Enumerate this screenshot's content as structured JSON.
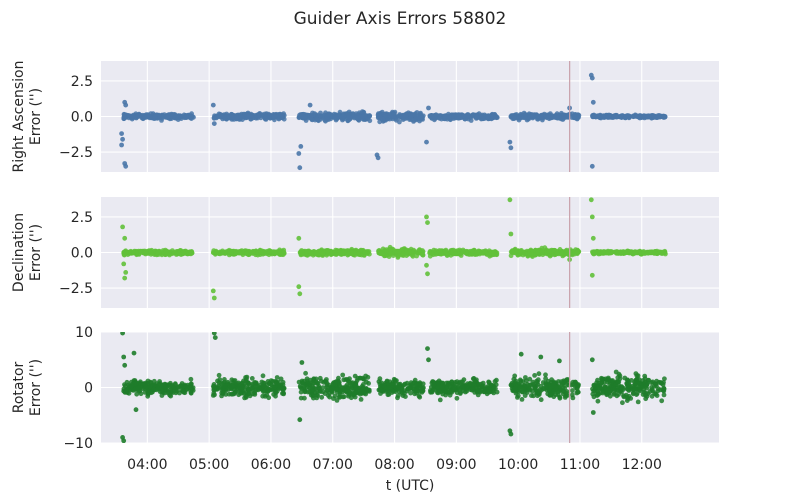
{
  "chart_data": {
    "type": "scatter",
    "title": "Guider Axis Errors 58802",
    "xlabel": "t (UTC)",
    "x_ticks": [
      "04:00",
      "05:00",
      "06:00",
      "07:00",
      "08:00",
      "09:00",
      "10:00",
      "11:00",
      "12:00"
    ],
    "x_range": [
      "03:15",
      "13:15"
    ],
    "grid": true,
    "vline": {
      "x": "10:50",
      "color": "#c8a0aa"
    },
    "segments": [
      {
        "start": "03:37",
        "end": "04:45"
      },
      {
        "start": "05:04",
        "end": "06:13"
      },
      {
        "start": "06:27",
        "end": "07:36"
      },
      {
        "start": "07:44",
        "end": "08:28"
      },
      {
        "start": "08:34",
        "end": "09:40"
      },
      {
        "start": "09:53",
        "end": "10:59"
      },
      {
        "start": "11:12",
        "end": "12:23"
      }
    ],
    "panels": [
      {
        "name": "ra",
        "ylabel_lines": [
          "Right Ascension",
          "Error ('')"
        ],
        "ylim": [
          -3.9,
          3.9
        ],
        "yticks": [
          2.5,
          0.0,
          -2.5
        ],
        "ytick_labels": [
          "2.5",
          "0.0",
          "−2.5"
        ],
        "color": "#4a77a8",
        "core_spread": [
          0.15,
          0.18,
          0.22,
          0.28,
          0.15,
          0.16,
          0.08,
          0.12
        ],
        "outliers": [
          [
            "03:35",
            -1.2
          ],
          [
            "03:36",
            -1.6
          ],
          [
            "03:35",
            -2.0
          ],
          [
            "03:38",
            -3.3
          ],
          [
            "03:39",
            -3.5
          ],
          [
            "03:38",
            1.0
          ],
          [
            "03:39",
            0.8
          ],
          [
            "05:04",
            0.8
          ],
          [
            "05:05",
            -0.5
          ],
          [
            "06:27",
            -2.6
          ],
          [
            "06:28",
            -3.6
          ],
          [
            "06:29",
            -2.1
          ],
          [
            "06:38",
            0.8
          ],
          [
            "07:43",
            -2.7
          ],
          [
            "07:44",
            -2.9
          ],
          [
            "08:31",
            -1.8
          ],
          [
            "08:33",
            0.6
          ],
          [
            "09:52",
            -1.8
          ],
          [
            "09:53",
            -2.2
          ],
          [
            "10:50",
            0.6
          ],
          [
            "11:11",
            2.9
          ],
          [
            "11:12",
            2.7
          ],
          [
            "11:13",
            1.0
          ],
          [
            "11:12",
            -3.5
          ]
        ]
      },
      {
        "name": "dec",
        "ylabel_lines": [
          "Declination",
          "Error ('')"
        ],
        "ylim": [
          -3.9,
          3.9
        ],
        "yticks": [
          2.5,
          0.0,
          -2.5
        ],
        "ytick_labels": [
          "2.5",
          "0.0",
          "−2.5"
        ],
        "color": "#62c13a",
        "core_spread": [
          0.12,
          0.12,
          0.15,
          0.22,
          0.15,
          0.18,
          0.08,
          0.1
        ],
        "outliers": [
          [
            "03:36",
            1.8
          ],
          [
            "03:38",
            1.0
          ],
          [
            "03:37",
            -0.8
          ],
          [
            "03:38",
            -1.8
          ],
          [
            "03:39",
            -1.4
          ],
          [
            "05:04",
            -2.7
          ],
          [
            "05:05",
            -3.2
          ],
          [
            "06:27",
            -2.4
          ],
          [
            "06:28",
            -2.9
          ],
          [
            "06:27",
            1.0
          ],
          [
            "08:31",
            2.5
          ],
          [
            "08:32",
            2.1
          ],
          [
            "08:31",
            -0.9
          ],
          [
            "08:32",
            -1.5
          ],
          [
            "09:52",
            3.7
          ],
          [
            "09:53",
            1.3
          ],
          [
            "10:50",
            -0.5
          ],
          [
            "11:11",
            3.7
          ],
          [
            "11:12",
            2.5
          ],
          [
            "11:13",
            1.0
          ],
          [
            "11:12",
            -1.6
          ]
        ]
      },
      {
        "name": "rot",
        "ylabel_lines": [
          "Rotator",
          "Error ('')"
        ],
        "ylim": [
          -10,
          10
        ],
        "yticks": [
          10,
          0,
          -10
        ],
        "ytick_labels": [
          "10",
          "0",
          "−10"
        ],
        "color": "#1e7d2a",
        "core_spread": [
          1.0,
          1.4,
          1.5,
          1.3,
          1.2,
          1.4,
          1.8,
          0.8
        ],
        "outliers": [
          [
            "03:36",
            9.8
          ],
          [
            "03:37",
            5.5
          ],
          [
            "03:38",
            4.0
          ],
          [
            "03:36",
            -9.0
          ],
          [
            "03:37",
            -9.6
          ],
          [
            "03:47",
            6.2
          ],
          [
            "03:49",
            -4.0
          ],
          [
            "05:05",
            9.8
          ],
          [
            "05:06",
            9.0
          ],
          [
            "06:28",
            -5.8
          ],
          [
            "06:30",
            4.5
          ],
          [
            "08:32",
            7.0
          ],
          [
            "08:33",
            5.0
          ],
          [
            "09:52",
            -7.8
          ],
          [
            "09:53",
            -8.4
          ],
          [
            "10:03",
            6.0
          ],
          [
            "10:22",
            5.5
          ],
          [
            "10:40",
            4.8
          ],
          [
            "11:12",
            5.0
          ],
          [
            "11:13",
            -4.5
          ]
        ]
      }
    ]
  }
}
